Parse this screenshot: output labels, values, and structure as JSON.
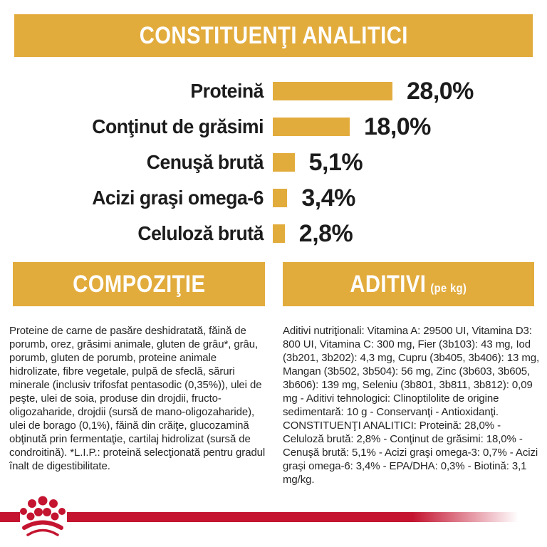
{
  "colors": {
    "gold": "#E2AC3D",
    "red": "#C41430",
    "ink": "#1C1C1C"
  },
  "header": {
    "title": "CONSTITUENŢI ANALITICI"
  },
  "chart_data": {
    "type": "bar",
    "orientation": "horizontal",
    "title": "CONSTITUENŢI ANALITICI",
    "categories": [
      "Proteină",
      "Conţinut de grăsimi",
      "Cenuşă brută",
      "Acizi graşi omega-6",
      "Celuloză brută"
    ],
    "values": [
      28.0,
      18.0,
      5.1,
      3.4,
      2.8
    ],
    "value_labels": [
      "28,0%",
      "18,0%",
      "5,1%",
      "3,4%",
      "2,8%"
    ],
    "unit": "%",
    "bar_color": "#E2AC3D",
    "xlim": [
      0,
      30
    ],
    "grid": false,
    "legend": false
  },
  "sections": {
    "composition": {
      "title": "COMPOZIŢIE",
      "body": "Proteine de carne de pasăre deshidratată, făină de porumb, orez, grăsimi animale, gluten de grâu*, grâu, porumb, gluten de porumb, proteine animale hidrolizate, fibre vegetale, pulpă de sfeclă, săruri minerale (inclusiv trifosfat pentasodic (0,35%)), ulei de peşte, ulei de soia, produse din drojdii, fructo-oligozaharide, drojdii (sursă de mano-oligozaharide), ulei de borago (0,1%), făină din crăiţe, glucozamină obţinută prin fermentaţie, cartilaj hidrolizat (sursă de condroitină). *L.I.P.: proteină selecţionată pentru gradul înalt de digestibilitate."
    },
    "additives": {
      "title": "ADITIVI",
      "title_suffix": "(pe kg)",
      "body": "Aditivi nutriţionali: Vitamina A: 29500 UI, Vitamina D3: 800 UI, Vitamina C: 300 mg, Fier (3b103): 43 mg, Iod (3b201, 3b202): 4,3 mg, Cupru (3b405, 3b406): 13 mg, Mangan (3b502, 3b504): 56 mg, Zinc (3b603, 3b605, 3b606): 139 mg, Seleniu (3b801, 3b811, 3b812): 0,09 mg - Aditivi tehnologici: Clinoptilolite de origine sedimentară: 10 g - Conservanţi - Antioxidanţi. CONSTITUENŢI ANALITICI: Proteină: 28,0% - Celuloză brută: 2,8% - Conţinut de grăsimi: 18,0% - Cenuşă brută: 5,1% - Acizi graşi omega-3: 0,7% - Acizi graşi omega-6: 3,4% - EPA/DHA: 0,3% - Biotină: 3,1 mg/kg."
    }
  },
  "footer": {
    "brand_logo": "royal-canin-crown"
  }
}
